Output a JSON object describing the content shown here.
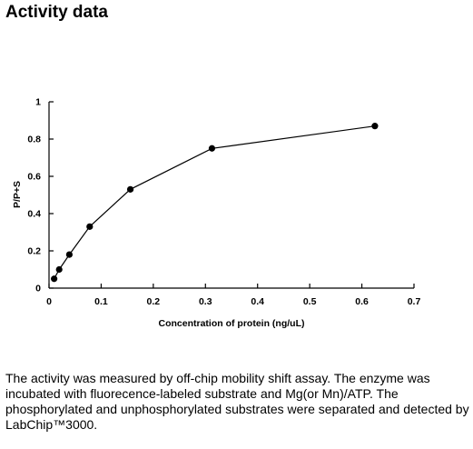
{
  "heading": "Activity data",
  "chart_data": {
    "type": "line",
    "title": "",
    "xlabel": "Concentration of protein (ng/uL)",
    "ylabel": "P/P+S",
    "xlim": [
      0,
      0.7
    ],
    "ylim": [
      0,
      1
    ],
    "xticks": [
      "0",
      "0.1",
      "0.2",
      "0.3",
      "0.4",
      "0.5",
      "0.6",
      "0.7"
    ],
    "yticks": [
      "0",
      "0.2",
      "0.4",
      "0.6",
      "0.8",
      "1"
    ],
    "xtick_values": [
      0,
      0.1,
      0.2,
      0.3,
      0.4,
      0.5,
      0.6,
      0.7
    ],
    "ytick_values": [
      0,
      0.2,
      0.4,
      0.6,
      0.8,
      1
    ],
    "grid": false,
    "legend": "none",
    "series": [
      {
        "x": [
          0.0098,
          0.0195,
          0.039,
          0.078,
          0.156,
          0.3125,
          0.625
        ],
        "y": [
          0.05,
          0.1,
          0.18,
          0.33,
          0.53,
          0.75,
          0.87
        ]
      }
    ],
    "colors": {
      "line": "#000000",
      "marker": "#000000",
      "axis": "#000000"
    }
  },
  "caption": "The activity was measured by off-chip mobility shift assay. The enzyme was incubated with fluorecence-labeled  substrate and Mg(or Mn)/ATP. The phosphorylated and unphosphorylated substrates were separated and detected by LabChip™3000."
}
